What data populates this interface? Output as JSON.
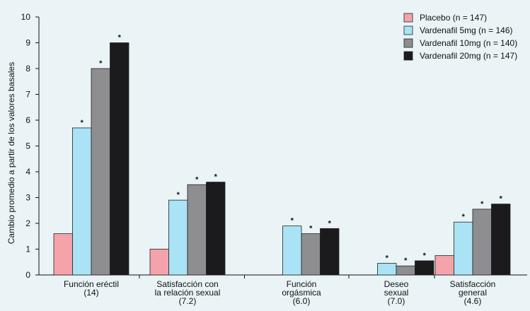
{
  "chart_data": {
    "type": "bar",
    "ylabel": "Cambio promedio a partir de los valores basales",
    "ylim": [
      0,
      10
    ],
    "yticks": [
      "0",
      "1",
      "2",
      "3",
      "4",
      "5",
      "6",
      "7",
      "8",
      "9",
      "10"
    ],
    "categories": [
      {
        "lines": [
          "Función eréctil",
          "(14)"
        ]
      },
      {
        "lines": [
          "Satisfacción con",
          "la relación sexual",
          "(7.2)"
        ]
      },
      {
        "lines": [
          "Función",
          "orgásmica",
          "(6.0)"
        ]
      },
      {
        "lines": [
          "Deseo",
          "sexual",
          "(7.0)"
        ]
      },
      {
        "lines": [
          "Satisfacción",
          "general",
          "(4.6)"
        ]
      }
    ],
    "series": [
      {
        "name": "Placebo (n = 147)",
        "color": "#f4a3ab",
        "values": [
          1.6,
          1.0,
          0,
          0,
          0.75
        ],
        "significant": [
          false,
          false,
          false,
          false,
          false
        ]
      },
      {
        "name": "Vardenafil 5mg (n = 146)",
        "color": "#a9e3f5",
        "values": [
          5.7,
          2.9,
          1.9,
          0.45,
          2.05
        ],
        "significant": [
          true,
          true,
          true,
          true,
          true
        ]
      },
      {
        "name": "Vardenafil 10mg (n = 140)",
        "color": "#8e8e90",
        "values": [
          8.0,
          3.5,
          1.6,
          0.35,
          2.55
        ],
        "significant": [
          true,
          true,
          true,
          true,
          true
        ]
      },
      {
        "name": "Vardenafil 20mg (n = 147)",
        "color": "#1b1b1d",
        "values": [
          9.0,
          3.6,
          1.8,
          0.55,
          2.75
        ],
        "significant": [
          true,
          true,
          true,
          true,
          true
        ]
      }
    ],
    "significance_marker": "*",
    "legend_position": "top-right",
    "grid": false
  }
}
